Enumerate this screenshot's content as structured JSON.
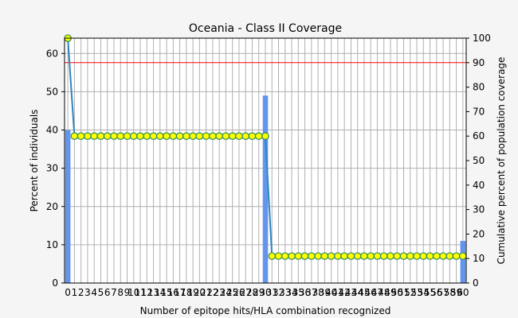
{
  "chart_data": {
    "type": "bar",
    "title": "Oceania - Class II Coverage",
    "xlabel": "Number of epitope hits/HLA combination recognized",
    "ylabel": "Percent of individuals",
    "y2label": "Cumulative percent of population coverage",
    "xlim": [
      -0.5,
      60.5
    ],
    "ylim": [
      0,
      64
    ],
    "y2lim": [
      0,
      100
    ],
    "x_ticks": [
      0,
      1,
      2,
      3,
      4,
      5,
      6,
      7,
      8,
      9,
      10,
      11,
      12,
      13,
      14,
      15,
      16,
      17,
      18,
      19,
      20,
      21,
      22,
      23,
      24,
      25,
      26,
      27,
      28,
      29,
      30,
      31,
      32,
      33,
      34,
      35,
      36,
      37,
      38,
      39,
      40,
      41,
      42,
      43,
      44,
      45,
      46,
      47,
      48,
      49,
      50,
      51,
      52,
      53,
      54,
      55,
      56,
      57,
      58,
      59,
      60
    ],
    "y_ticks": [
      0,
      10,
      20,
      30,
      40,
      50,
      60
    ],
    "y2_ticks": [
      0,
      10,
      20,
      30,
      40,
      50,
      60,
      70,
      80,
      90,
      100
    ],
    "grid": true,
    "reference_line_y2": 90,
    "series": [
      {
        "kind": "bar",
        "axis": "left",
        "x": [
          0,
          30,
          60
        ],
        "values": [
          40,
          49,
          11
        ]
      },
      {
        "kind": "line",
        "axis": "right",
        "x": [
          0,
          1,
          2,
          3,
          4,
          5,
          6,
          7,
          8,
          9,
          10,
          11,
          12,
          13,
          14,
          15,
          16,
          17,
          18,
          19,
          20,
          21,
          22,
          23,
          24,
          25,
          26,
          27,
          28,
          29,
          30,
          31,
          32,
          33,
          34,
          35,
          36,
          37,
          38,
          39,
          40,
          41,
          42,
          43,
          44,
          45,
          46,
          47,
          48,
          49,
          50,
          51,
          52,
          53,
          54,
          55,
          56,
          57,
          58,
          59,
          60
        ],
        "values": [
          100,
          60,
          60,
          60,
          60,
          60,
          60,
          60,
          60,
          60,
          60,
          60,
          60,
          60,
          60,
          60,
          60,
          60,
          60,
          60,
          60,
          60,
          60,
          60,
          60,
          60,
          60,
          60,
          60,
          60,
          60,
          11,
          11,
          11,
          11,
          11,
          11,
          11,
          11,
          11,
          11,
          11,
          11,
          11,
          11,
          11,
          11,
          11,
          11,
          11,
          11,
          11,
          11,
          11,
          11,
          11,
          11,
          11,
          11,
          11,
          11
        ]
      }
    ],
    "colors": {
      "bar": "#6495ed",
      "line": "#2e86c1",
      "marker_fill": "#ffff00",
      "marker_stroke": "#2e8b57",
      "reference_line": "#ff0000",
      "grid": "#b0b0b0"
    }
  }
}
